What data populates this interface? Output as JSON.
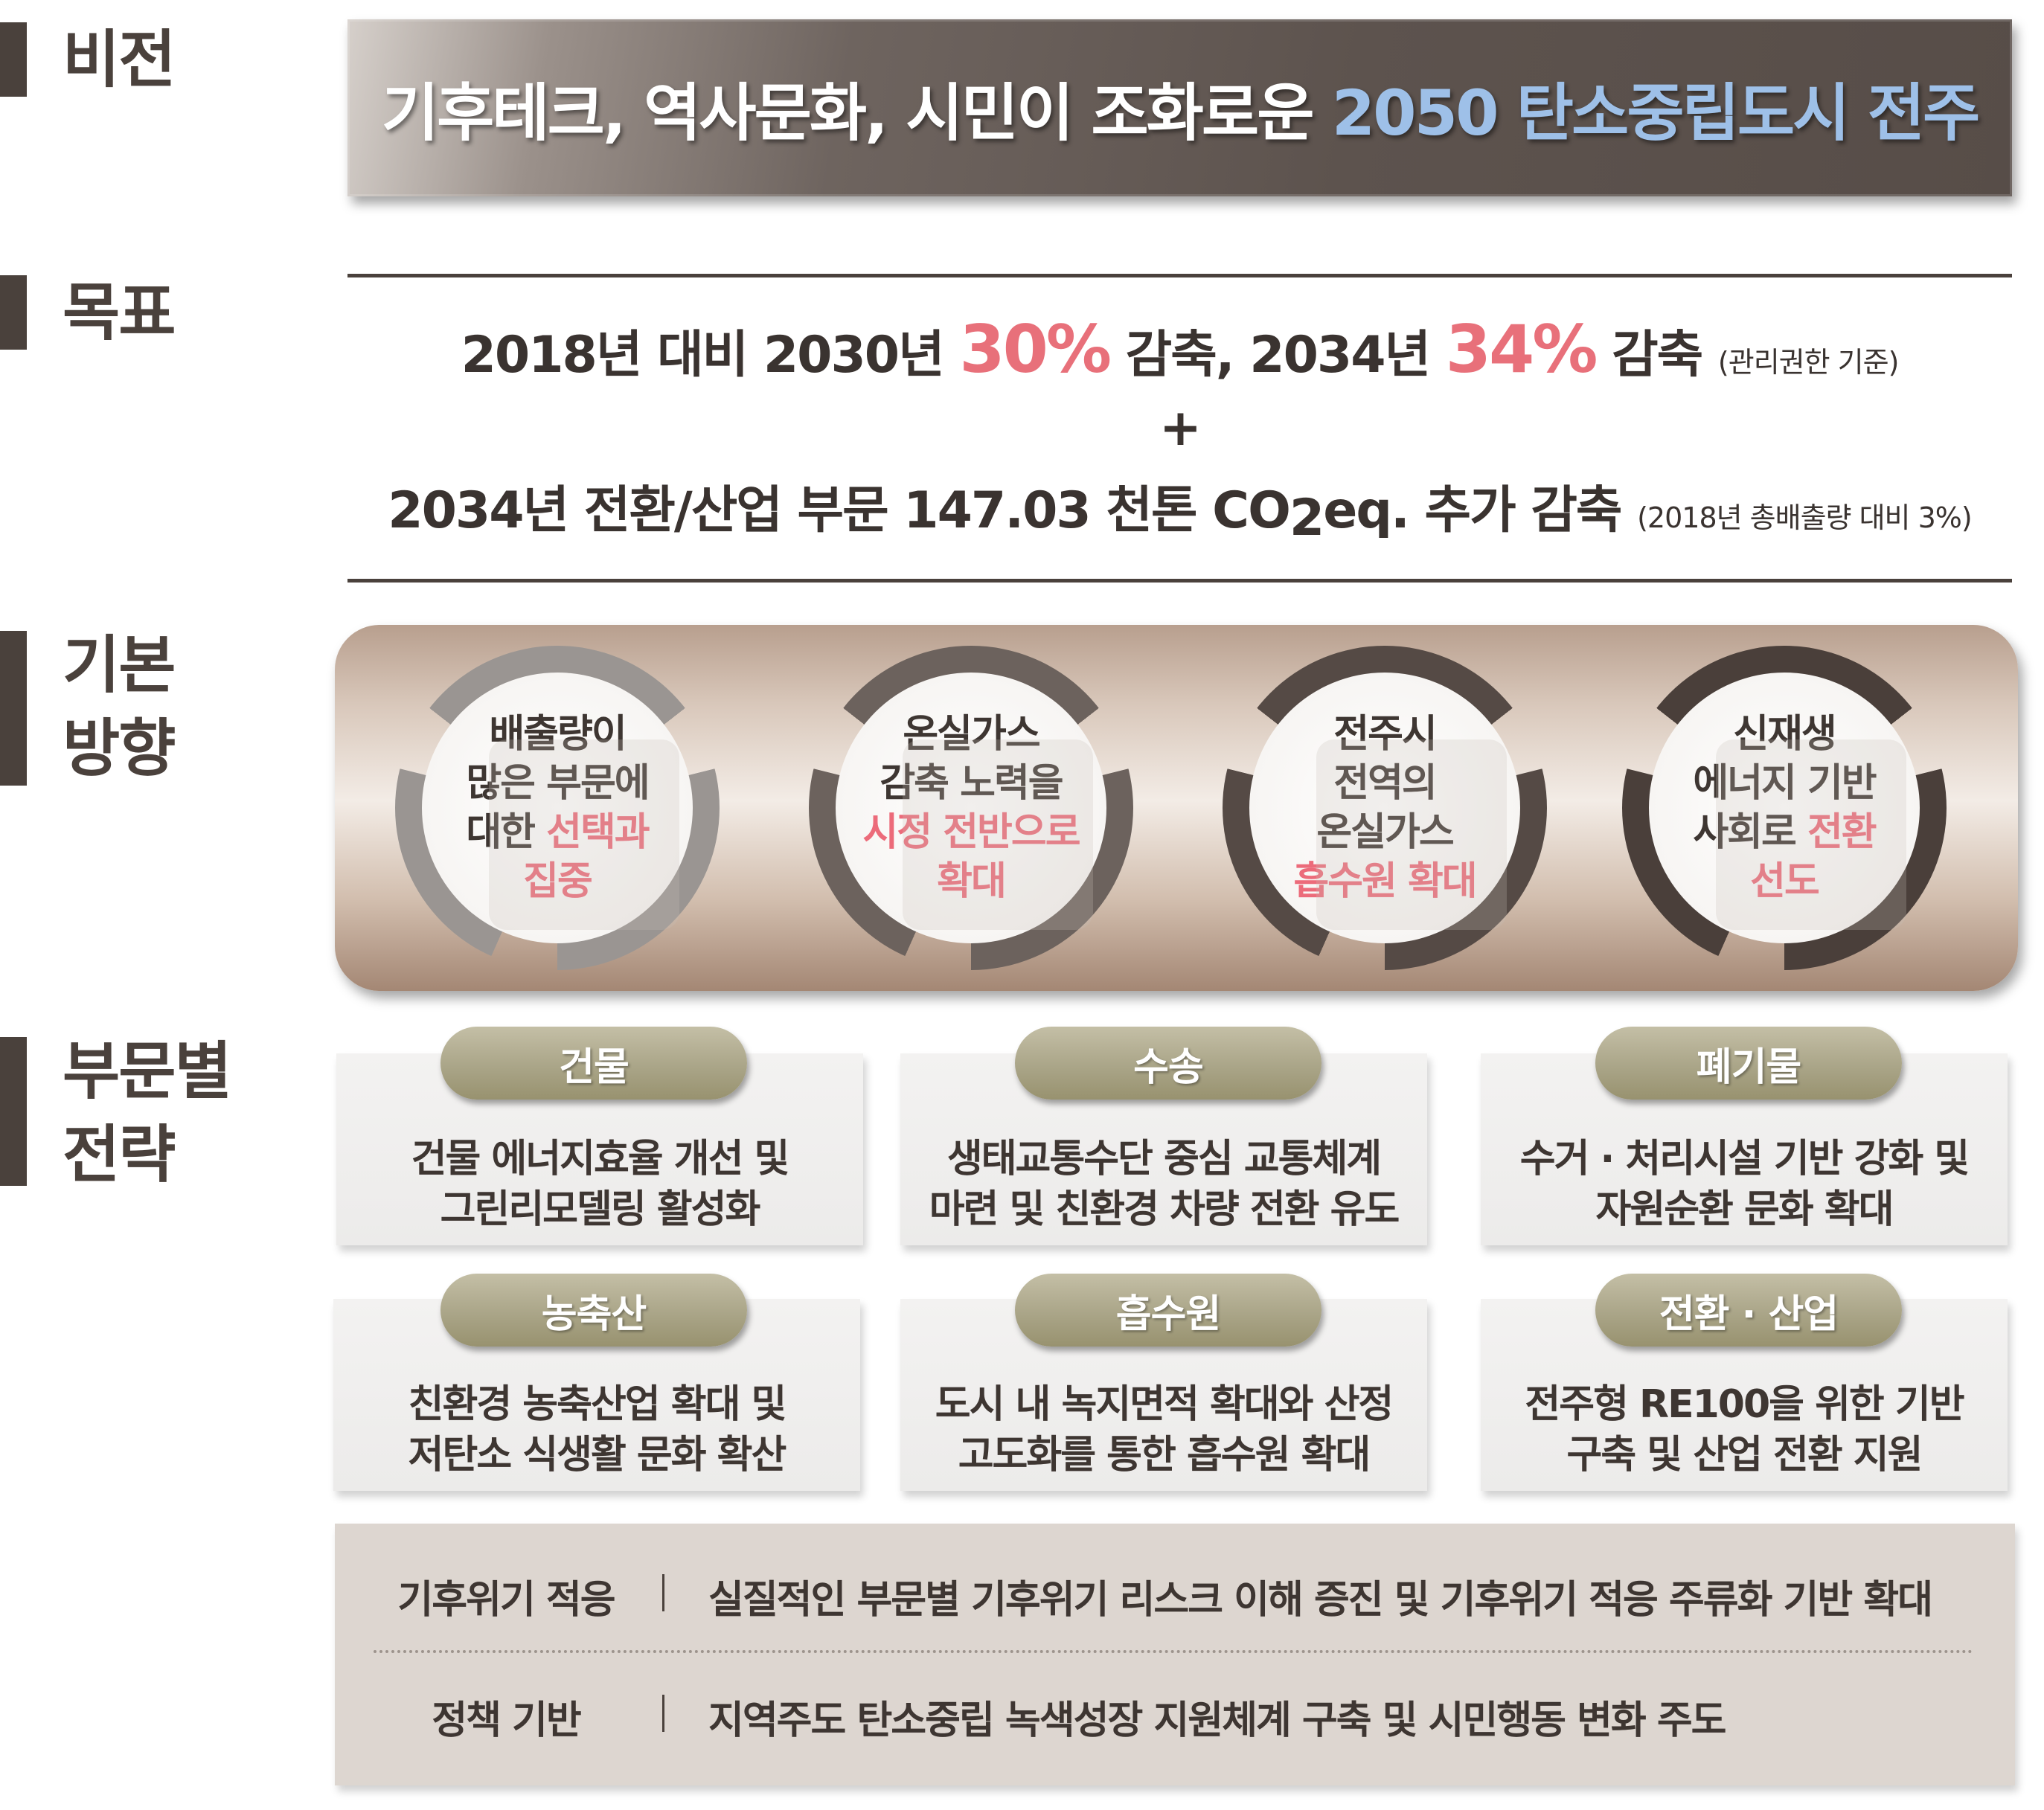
{
  "sections": {
    "vision": "비전",
    "goal": "목표",
    "direction_line1": "기본",
    "direction_line2": "방향",
    "sector_line1": "부문별",
    "sector_line2": "전략"
  },
  "vision": {
    "text_main": "기후테크, 역사문화, 시민이 조화로운 ",
    "text_highlight": "2050 탄소중립도시 전주"
  },
  "goal": {
    "line1": {
      "part1": "2018년 대비 2030년 ",
      "pct1": "30%",
      "part2": " 감축, 2034년 ",
      "pct2": "34%",
      "part3": " 감축 ",
      "note": "(관리권한 기준)"
    },
    "plus": "+",
    "line2": {
      "part1": "2034년 전환/산업 부문 147.03 천톤 CO",
      "sub": "2",
      "part2": "eq. 추가 감축 ",
      "note": "(2018년 총배출량 대비 3%)"
    }
  },
  "directions": [
    {
      "line1": "배출량이",
      "line2": "많은 부문에",
      "line3a": "대한 ",
      "line3b": "선택과",
      "line4": "집중"
    },
    {
      "line1": "온실가스",
      "line2": "감축 노력을",
      "line3": "시정 전반으로",
      "line4": "확대"
    },
    {
      "line1": "전주시",
      "line2": "전역의",
      "line3": "온실가스",
      "line4": "흡수원 확대"
    },
    {
      "line1": "신재생",
      "line2": "에너지 기반",
      "line3a": "사회로 ",
      "line3b": "전환",
      "line4": "선도"
    }
  ],
  "colors": {
    "accent_pink": "#ec6b7a",
    "vision_highlight": "#9ec0e8",
    "dark_brown": "#4a413c",
    "pill_olive": "#aaa588"
  },
  "sectors": [
    {
      "title": "건물",
      "line1": "건물 에너지효율 개선 및",
      "line2": "그린리모델링 활성화"
    },
    {
      "title": "수송",
      "line1": "생태교통수단 중심 교통체계",
      "line2": "마련 및 친환경 차량 전환 유도"
    },
    {
      "title": "폐기물",
      "line1": "수거 · 처리시설 기반 강화 및",
      "line2": "자원순환 문화 확대"
    },
    {
      "title": "농축산",
      "line1": "친환경 농축산업 확대 및",
      "line2": "저탄소 식생활 문화 확산"
    },
    {
      "title": "흡수원",
      "line1": "도시 내 녹지면적 확대와 산정",
      "line2": "고도화를 통한 흡수원 확대"
    },
    {
      "title": "전환 · 산업",
      "line1": "전주형 RE100을 위한 기반",
      "line2": "구축 및 산업 전환 지원"
    }
  ],
  "common": [
    {
      "key": "기후위기 적응",
      "value": "실질적인 부문별 기후위기 리스크 이해 증진 및 기후위기 적응 주류화 기반 확대"
    },
    {
      "key": "정책 기반",
      "value": "지역주도 탄소중립 녹색성장 지원체계 구축 및 시민행동 변화 주도"
    }
  ]
}
